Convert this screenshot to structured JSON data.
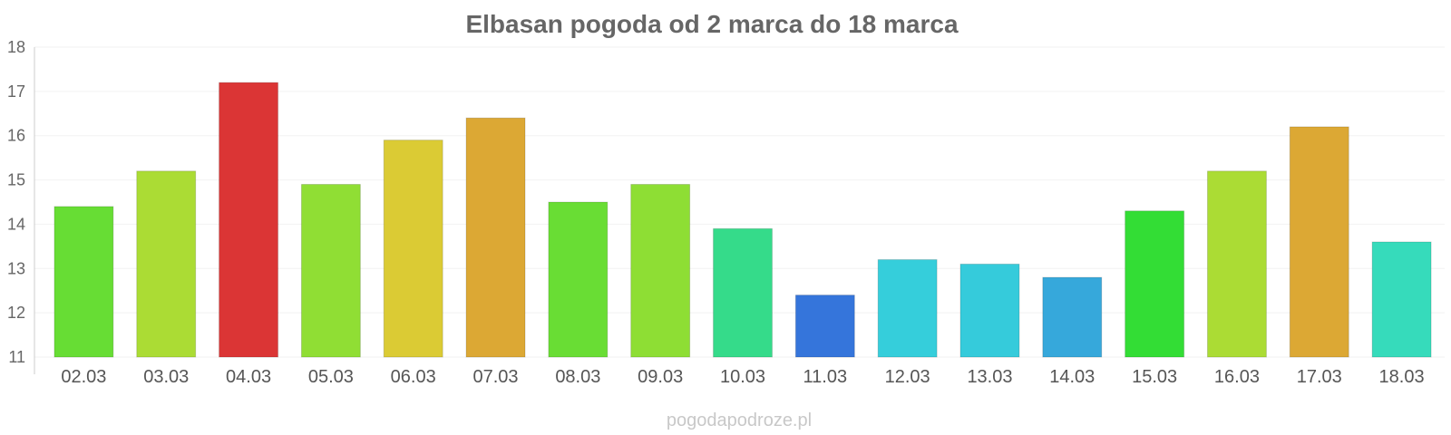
{
  "chart_data": {
    "type": "bar",
    "title": "Elbasan pogoda od 2 marca do 18 marca",
    "xlabel": "",
    "ylabel": "",
    "ylim": [
      11,
      18
    ],
    "yticks": [
      11,
      12,
      13,
      14,
      15,
      16,
      17,
      18
    ],
    "grid": true,
    "legend": "none",
    "categories": [
      "02.03",
      "03.03",
      "04.03",
      "05.03",
      "06.03",
      "07.03",
      "08.03",
      "09.03",
      "10.03",
      "11.03",
      "12.03",
      "13.03",
      "14.03",
      "15.03",
      "16.03",
      "17.03",
      "18.03"
    ],
    "values": [
      14.4,
      15.2,
      17.2,
      14.9,
      15.9,
      16.4,
      14.5,
      14.9,
      13.9,
      12.4,
      13.2,
      13.1,
      12.8,
      14.3,
      15.2,
      16.2,
      13.6
    ],
    "colors": [
      "#67dd34",
      "#abdc34",
      "#db3535",
      "#90de34",
      "#dbcb34",
      "#dca834",
      "#69dd34",
      "#8ede34",
      "#35db8a",
      "#3575db",
      "#35cedb",
      "#35cbdb",
      "#36a8db",
      "#33dd35",
      "#abdc34",
      "#dca834",
      "#36dbbb"
    ]
  },
  "watermark": "pogodapodroze.pl"
}
